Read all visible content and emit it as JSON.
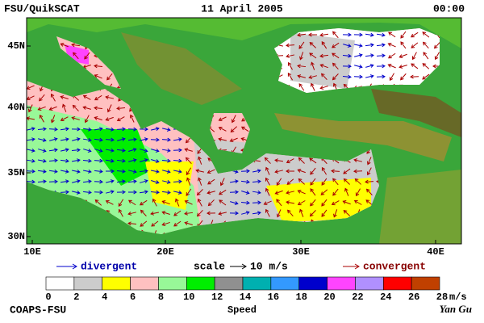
{
  "header": {
    "left": "FSU/QuikSCAT",
    "center": "11 April 2005",
    "right": "00:00"
  },
  "map": {
    "lat_labels": [
      "45N",
      "40N",
      "35N",
      "30N"
    ],
    "lon_labels": [
      "10E",
      "20E",
      "30E",
      "40E"
    ]
  },
  "legend": {
    "divergent": "divergent",
    "scale": "scale",
    "scale_value": "10 m/s",
    "convergent": "convergent"
  },
  "colorbar": {
    "title": "Speed",
    "unit": "m/s",
    "ticks": [
      0,
      2,
      4,
      6,
      8,
      10,
      12,
      14,
      16,
      18,
      20,
      22,
      24,
      26,
      28
    ],
    "colors": [
      "#ffffff",
      "#cccccc",
      "#ffff00",
      "#ffc0c0",
      "#98f898",
      "#00ee00",
      "#909090",
      "#00b0b0",
      "#3399ff",
      "#0000cc",
      "#ff44ff",
      "#b090ff",
      "#ff0000",
      "#c04000"
    ]
  },
  "footer": {
    "left": "COAPS-FSU",
    "right": "Yan Gu"
  }
}
